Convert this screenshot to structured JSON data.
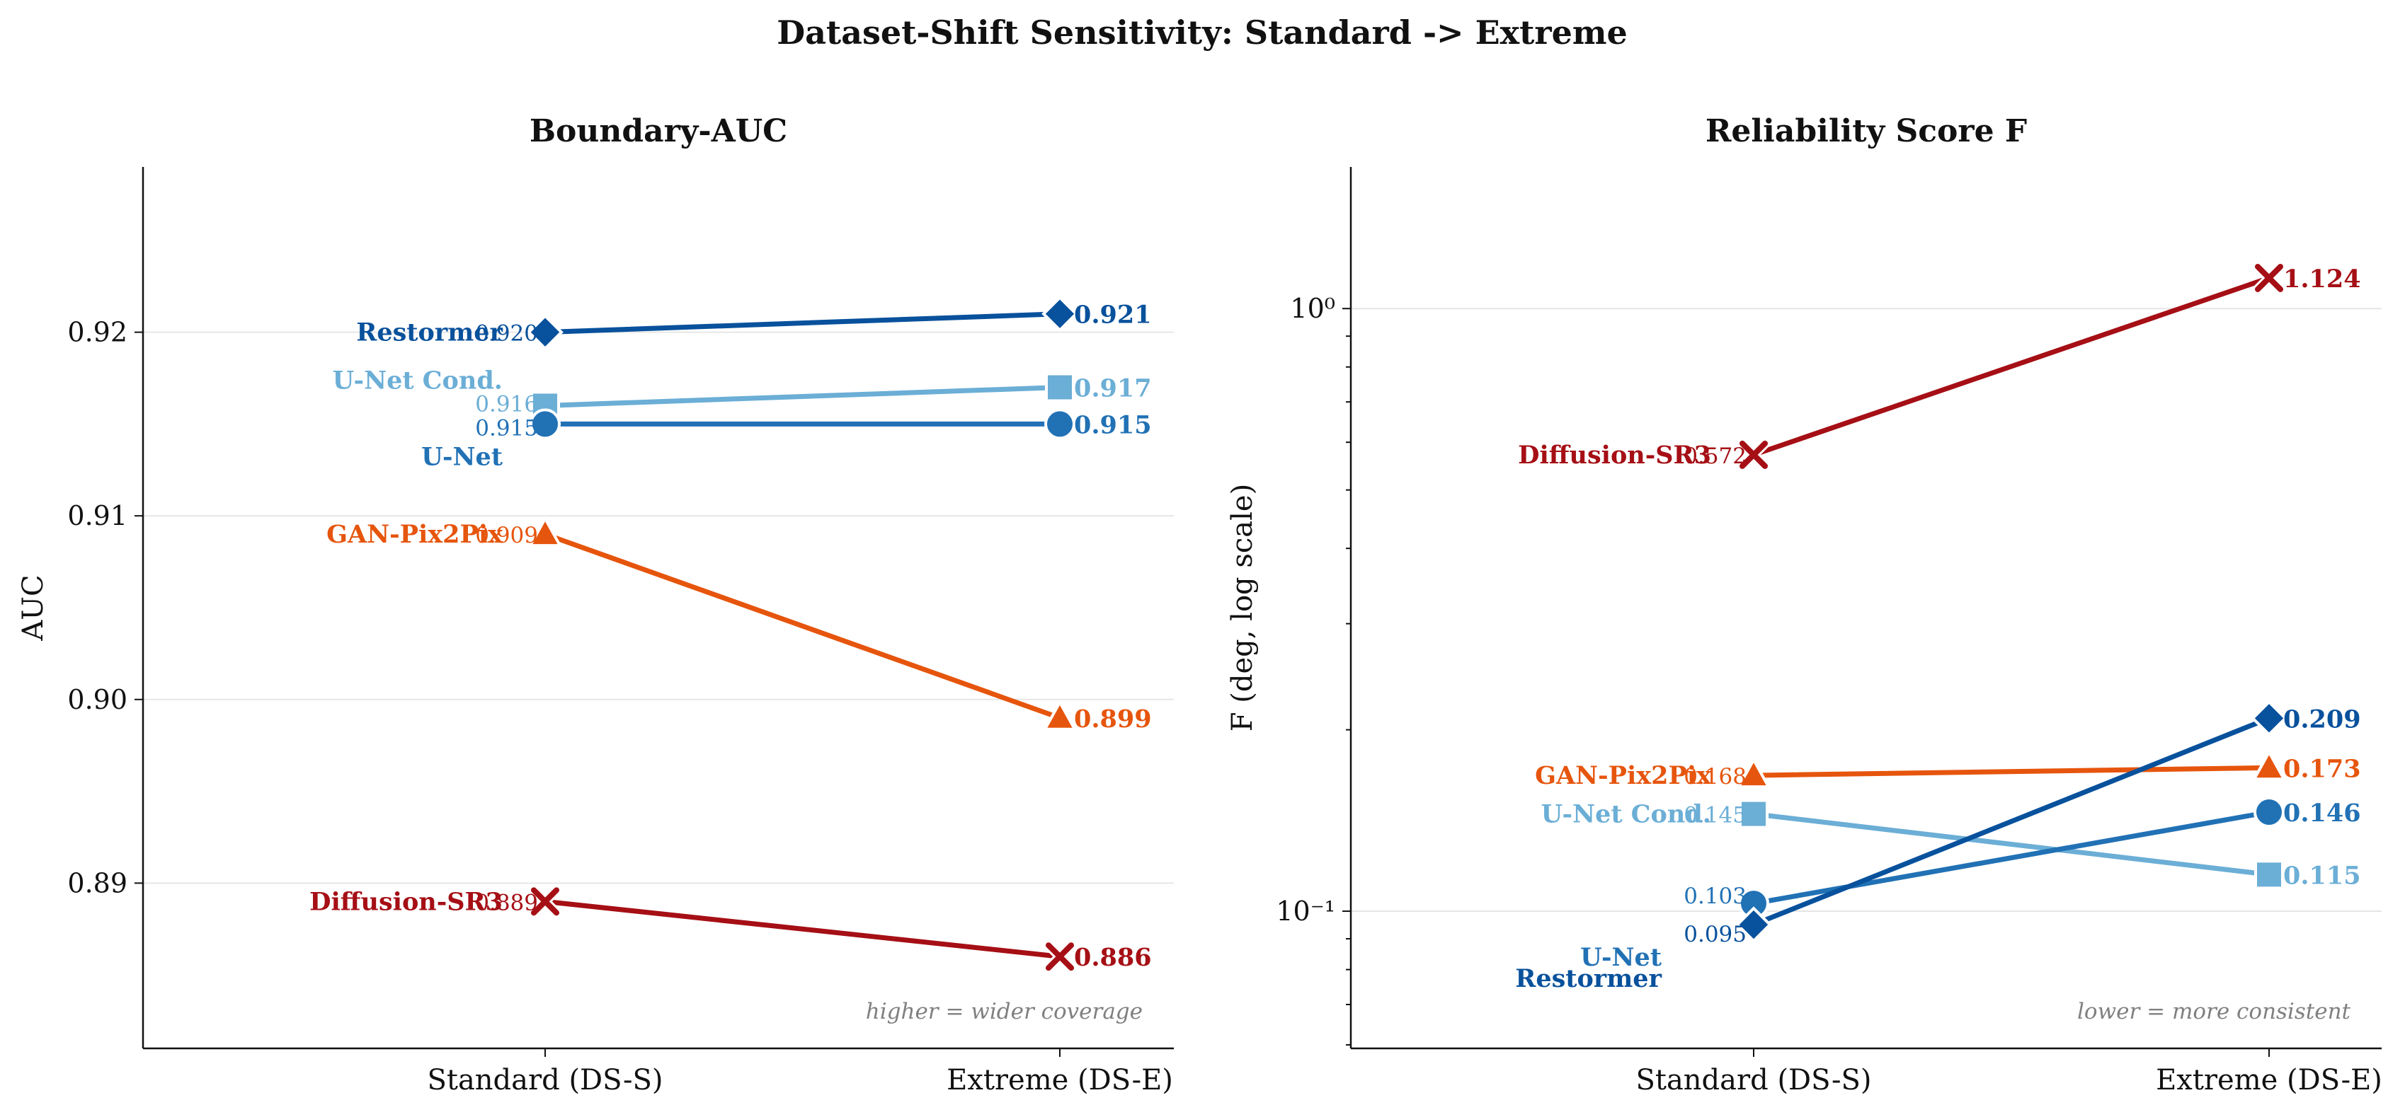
{
  "title": "Dataset-Shift Sensitivity: Standard -> Extreme",
  "chart_data": [
    {
      "type": "line",
      "title": "Boundary-AUC",
      "xlabel": "",
      "ylabel": "AUC",
      "categories": [
        "Standard (DS-S)",
        "Extreme (DS-E)"
      ],
      "ylim": [
        0.881,
        0.929
      ],
      "yticks": [
        "0.89",
        "0.90",
        "0.91",
        "0.92"
      ],
      "grid": "y",
      "annotation": "higher = wider coverage",
      "series": [
        {
          "name": "Restormer",
          "color": "#08519c",
          "marker": "diamond",
          "values": [
            0.92,
            0.921
          ],
          "value_labels": [
            "0.920",
            "0.921"
          ]
        },
        {
          "name": "U-Net Cond.",
          "color": "#6baed6",
          "marker": "square",
          "values": [
            0.916,
            0.917
          ],
          "value_labels": [
            "0.916",
            "0.917"
          ]
        },
        {
          "name": "U-Net",
          "color": "#2171b5",
          "marker": "circle",
          "values": [
            0.915,
            0.915
          ],
          "value_labels": [
            "0.915",
            "0.915"
          ]
        },
        {
          "name": "GAN-Pix2Pix",
          "color": "#e6550d",
          "marker": "triangle",
          "values": [
            0.909,
            0.899
          ],
          "value_labels": [
            "0.909",
            "0.899"
          ]
        },
        {
          "name": "Diffusion-SR3",
          "color": "#a50f15",
          "marker": "x",
          "values": [
            0.889,
            0.886
          ],
          "value_labels": [
            "0.889",
            "0.886"
          ]
        }
      ]
    },
    {
      "type": "line",
      "title": "Reliability Score F",
      "xlabel": "",
      "ylabel": "F (deg, log scale)",
      "categories": [
        "Standard (DS-S)",
        "Extreme (DS-E)"
      ],
      "yscale": "log",
      "ylim": [
        0.0592,
        1.718
      ],
      "yticks": [
        "10⁻¹",
        "10⁰"
      ],
      "grid": "y",
      "annotation": "lower = more consistent",
      "series": [
        {
          "name": "Diffusion-SR3",
          "color": "#a50f15",
          "marker": "x",
          "values": [
            0.572,
            1.124
          ],
          "value_labels": [
            "0.572",
            "1.124"
          ]
        },
        {
          "name": "GAN-Pix2Pix",
          "color": "#e6550d",
          "marker": "triangle",
          "values": [
            0.168,
            0.173
          ],
          "value_labels": [
            "0.168",
            "0.173"
          ]
        },
        {
          "name": "U-Net Cond.",
          "color": "#6baed6",
          "marker": "square",
          "values": [
            0.145,
            0.115
          ],
          "value_labels": [
            "0.145",
            "0.115"
          ]
        },
        {
          "name": "U-Net",
          "color": "#2171b5",
          "marker": "circle",
          "values": [
            0.103,
            0.146
          ],
          "value_labels": [
            "0.103",
            "0.146"
          ]
        },
        {
          "name": "Restormer",
          "color": "#08519c",
          "marker": "diamond",
          "values": [
            0.095,
            0.209
          ],
          "value_labels": [
            "0.095",
            "0.209"
          ]
        }
      ]
    }
  ]
}
